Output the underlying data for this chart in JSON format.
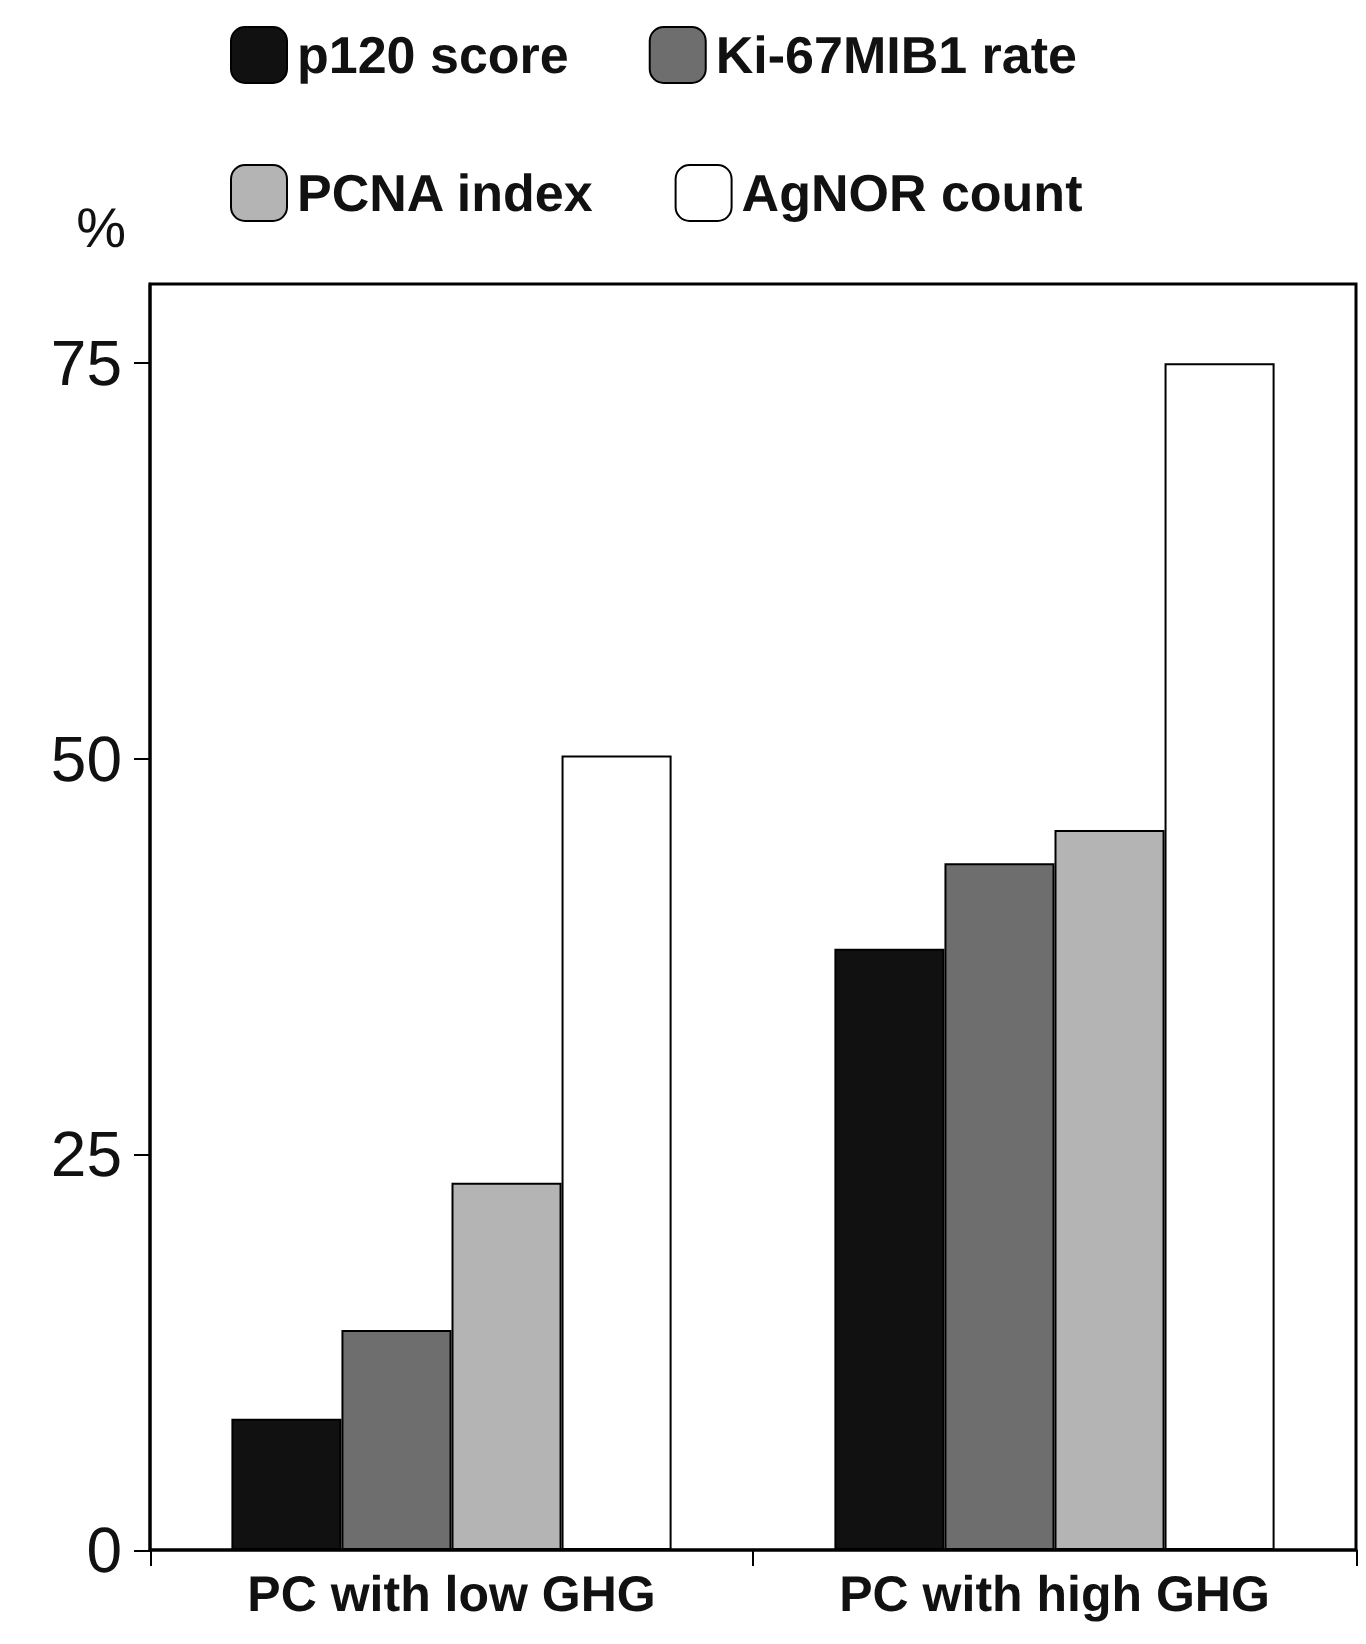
{
  "chart_data": {
    "type": "bar",
    "ylabel": "%",
    "categories": [
      "PC with low GHG",
      "PC with high GHG"
    ],
    "series": [
      {
        "name": "p120 score",
        "color": "#111111",
        "values": [
          8.3,
          38
        ]
      },
      {
        "name": "Ki-67MIB1 rate",
        "color": "#6e6e6e",
        "values": [
          13.9,
          43.4
        ]
      },
      {
        "name": "PCNA index",
        "color": "#b4b4b4",
        "values": [
          23.2,
          45.5
        ]
      },
      {
        "name": "AgNOR count",
        "color": "#ffffff",
        "values": [
          50.2,
          75
        ]
      }
    ],
    "ylim": [
      0,
      80
    ],
    "yticks": [
      0,
      25,
      50,
      75
    ],
    "grid": false,
    "legend": "top"
  }
}
